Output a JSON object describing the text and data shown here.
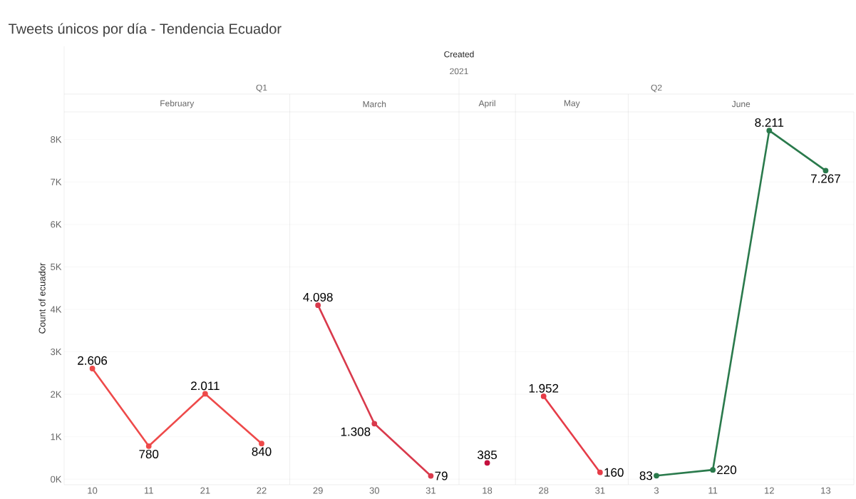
{
  "chart_data": {
    "type": "line",
    "title": "Tweets únicos por día - Tendencia Ecuador",
    "ylabel": "Count of ecuador",
    "annotations": [
      "Created",
      "2021",
      "Q1",
      "Q2",
      "February",
      "March",
      "April",
      "May",
      "June"
    ],
    "categories": [
      "10",
      "11",
      "21",
      "22",
      "29",
      "30",
      "31",
      "18",
      "28",
      "31",
      "3",
      "11",
      "12",
      "13"
    ],
    "series": [
      {
        "color": "#ee4a4a",
        "values": [
          2606,
          780,
          2011,
          840,
          null,
          null,
          null,
          null,
          null,
          null,
          null,
          null,
          null,
          null
        ],
        "value_labels": [
          "2.606",
          "780",
          "2.011",
          "840",
          null,
          null,
          null,
          null,
          null,
          null,
          null,
          null,
          null,
          null
        ]
      },
      {
        "color": "#d93a4c",
        "values": [
          null,
          null,
          null,
          null,
          4098,
          1308,
          79,
          null,
          null,
          null,
          null,
          null,
          null,
          null
        ],
        "value_labels": [
          null,
          null,
          null,
          null,
          "4.098",
          "1.308",
          "79",
          null,
          null,
          null,
          null,
          null,
          null,
          null
        ]
      },
      {
        "color": "#c4103e",
        "values": [
          null,
          null,
          null,
          null,
          null,
          null,
          null,
          385,
          null,
          null,
          null,
          null,
          null,
          null
        ],
        "value_labels": [
          null,
          null,
          null,
          null,
          null,
          null,
          null,
          "385",
          null,
          null,
          null,
          null,
          null,
          null
        ]
      },
      {
        "color": "#e63c48",
        "values": [
          null,
          null,
          null,
          null,
          null,
          null,
          null,
          null,
          1952,
          160,
          null,
          null,
          null,
          null
        ],
        "value_labels": [
          null,
          null,
          null,
          null,
          null,
          null,
          null,
          null,
          "1.952",
          "160",
          null,
          null,
          null,
          null
        ]
      },
      {
        "color": "#2a7a4c",
        "values": [
          null,
          null,
          null,
          null,
          null,
          null,
          null,
          null,
          null,
          null,
          83,
          220,
          8211,
          7267
        ],
        "value_labels": [
          null,
          null,
          null,
          null,
          null,
          null,
          null,
          null,
          null,
          null,
          "83",
          "220",
          "8.211",
          "7.267"
        ]
      }
    ],
    "ylim": [
      -130,
      8650
    ],
    "yticks": [
      {
        "value": 0,
        "label": "0K"
      },
      {
        "value": 1000,
        "label": "1K"
      },
      {
        "value": 2000,
        "label": "2K"
      },
      {
        "value": 3000,
        "label": "3K"
      },
      {
        "value": 4000,
        "label": "4K"
      },
      {
        "value": 5000,
        "label": "5K"
      },
      {
        "value": 6000,
        "label": "6K"
      },
      {
        "value": 7000,
        "label": "7K"
      },
      {
        "value": 8000,
        "label": "8K"
      }
    ],
    "grid": "y",
    "marker": "circle",
    "line_style": "solid"
  }
}
